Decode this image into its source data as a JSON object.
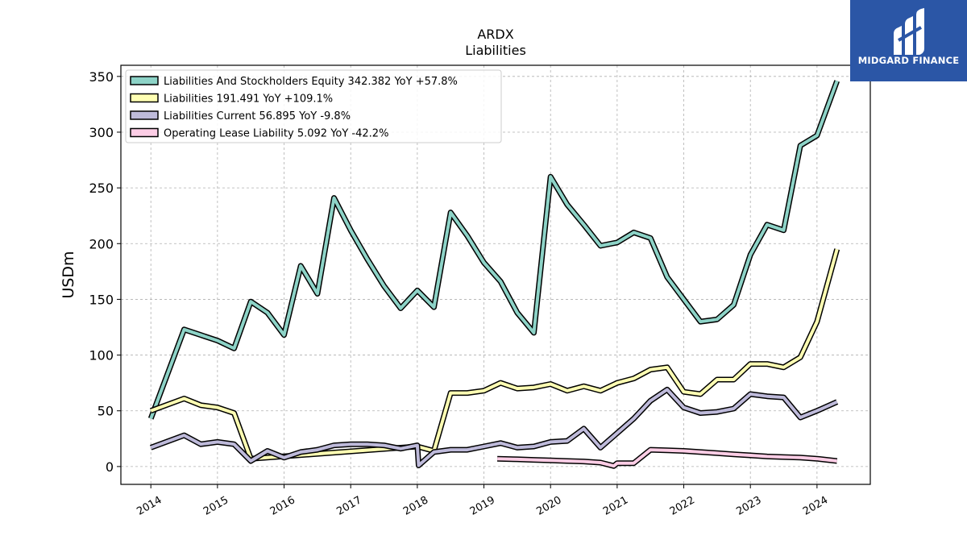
{
  "chart_data": {
    "type": "line",
    "title": "ARDX",
    "subtitle": "Liabilities",
    "ylabel": "USDm",
    "xlabel": "",
    "xlim": [
      2013.55,
      2024.8
    ],
    "ylim": [
      -16,
      360
    ],
    "yticks": [
      0,
      50,
      100,
      150,
      200,
      250,
      300,
      350
    ],
    "xticks": [
      2014,
      2015,
      2016,
      2017,
      2018,
      2019,
      2020,
      2021,
      2022,
      2023,
      2024
    ],
    "grid": true,
    "legend_position": "top-left",
    "series": [
      {
        "name": "Liabilities And Stockholders Equity",
        "legend_label": "Liabilities And Stockholders Equity  342.382 YoY +57.8%",
        "color": "#8dd3c7",
        "points": [
          [
            2014.0,
            43
          ],
          [
            2014.5,
            123
          ],
          [
            2014.75,
            118
          ],
          [
            2015.0,
            113
          ],
          [
            2015.25,
            106
          ],
          [
            2015.5,
            148
          ],
          [
            2015.75,
            138
          ],
          [
            2016.0,
            118
          ],
          [
            2016.25,
            180
          ],
          [
            2016.5,
            155
          ],
          [
            2016.75,
            241
          ],
          [
            2017.0,
            212
          ],
          [
            2017.25,
            186
          ],
          [
            2017.5,
            162
          ],
          [
            2017.75,
            142
          ],
          [
            2018.0,
            158
          ],
          [
            2018.25,
            143
          ],
          [
            2018.5,
            228
          ],
          [
            2018.75,
            207
          ],
          [
            2019.0,
            183
          ],
          [
            2019.25,
            166
          ],
          [
            2019.5,
            138
          ],
          [
            2019.75,
            120
          ],
          [
            2020.0,
            260
          ],
          [
            2020.25,
            235
          ],
          [
            2020.5,
            217
          ],
          [
            2020.75,
            198
          ],
          [
            2021.0,
            201
          ],
          [
            2021.25,
            210
          ],
          [
            2021.5,
            205
          ],
          [
            2021.75,
            170
          ],
          [
            2022.0,
            150
          ],
          [
            2022.25,
            130
          ],
          [
            2022.5,
            132
          ],
          [
            2022.75,
            145
          ],
          [
            2023.0,
            190
          ],
          [
            2023.25,
            217
          ],
          [
            2023.5,
            212
          ],
          [
            2023.75,
            288
          ],
          [
            2024.0,
            297
          ],
          [
            2024.3,
            346
          ]
        ]
      },
      {
        "name": "Liabilities",
        "legend_label": "Liabilities  191.491 YoY +109.1%",
        "color": "#ffffb3",
        "points": [
          [
            2014.0,
            50
          ],
          [
            2014.5,
            61
          ],
          [
            2014.75,
            55
          ],
          [
            2015.0,
            53
          ],
          [
            2015.25,
            48
          ],
          [
            2015.5,
            7
          ],
          [
            2018.0,
            18
          ],
          [
            2018.25,
            14
          ],
          [
            2018.5,
            66
          ],
          [
            2018.75,
            66
          ],
          [
            2019.0,
            68
          ],
          [
            2019.25,
            75
          ],
          [
            2019.5,
            70
          ],
          [
            2019.75,
            71
          ],
          [
            2020.0,
            74
          ],
          [
            2020.25,
            68
          ],
          [
            2020.5,
            72
          ],
          [
            2020.75,
            68
          ],
          [
            2021.0,
            75
          ],
          [
            2021.25,
            79
          ],
          [
            2021.5,
            87
          ],
          [
            2021.75,
            89
          ],
          [
            2022.0,
            67
          ],
          [
            2022.25,
            65
          ],
          [
            2022.5,
            78
          ],
          [
            2022.75,
            78
          ],
          [
            2023.0,
            92
          ],
          [
            2023.25,
            92
          ],
          [
            2023.5,
            89
          ],
          [
            2023.75,
            98
          ],
          [
            2024.0,
            130
          ],
          [
            2024.3,
            195
          ]
        ]
      },
      {
        "name": "Liabilities Current",
        "legend_label": "Liabilities Current  56.895 YoY -9.8%",
        "color": "#bebada",
        "points": [
          [
            2014.0,
            17
          ],
          [
            2014.5,
            28
          ],
          [
            2014.75,
            20
          ],
          [
            2015.0,
            22
          ],
          [
            2015.25,
            20
          ],
          [
            2015.5,
            5
          ],
          [
            2015.75,
            14
          ],
          [
            2016.0,
            8
          ],
          [
            2016.25,
            13
          ],
          [
            2016.5,
            15
          ],
          [
            2016.75,
            19
          ],
          [
            2017.0,
            20
          ],
          [
            2017.25,
            20
          ],
          [
            2017.5,
            19
          ],
          [
            2017.75,
            16
          ],
          [
            2018.0,
            19
          ],
          [
            2018.02,
            1
          ],
          [
            2018.25,
            13
          ],
          [
            2018.5,
            15
          ],
          [
            2018.75,
            15
          ],
          [
            2019.0,
            18
          ],
          [
            2019.25,
            21
          ],
          [
            2019.5,
            17
          ],
          [
            2019.75,
            18
          ],
          [
            2020.0,
            22
          ],
          [
            2020.25,
            23
          ],
          [
            2020.5,
            34
          ],
          [
            2020.75,
            17
          ],
          [
            2021.0,
            30
          ],
          [
            2021.25,
            43
          ],
          [
            2021.5,
            59
          ],
          [
            2021.75,
            69
          ],
          [
            2022.0,
            53
          ],
          [
            2022.25,
            48
          ],
          [
            2022.5,
            49
          ],
          [
            2022.75,
            52
          ],
          [
            2023.0,
            65
          ],
          [
            2023.25,
            63
          ],
          [
            2023.5,
            62
          ],
          [
            2023.75,
            44
          ],
          [
            2024.0,
            50
          ],
          [
            2024.3,
            58
          ]
        ]
      },
      {
        "name": "Operating Lease Liability",
        "legend_label": "Operating Lease Liability  5.092 YoY -42.2%",
        "color": "#fccde5",
        "points": [
          [
            2019.2,
            7
          ],
          [
            2019.5,
            6.5
          ],
          [
            2019.75,
            6
          ],
          [
            2020.0,
            5.5
          ],
          [
            2020.25,
            5
          ],
          [
            2020.5,
            4.5
          ],
          [
            2020.75,
            3.5
          ],
          [
            2020.95,
            0.5
          ],
          [
            2021.0,
            3
          ],
          [
            2021.25,
            3
          ],
          [
            2021.5,
            15
          ],
          [
            2021.75,
            14.5
          ],
          [
            2022.0,
            14
          ],
          [
            2022.25,
            13
          ],
          [
            2022.5,
            12
          ],
          [
            2022.75,
            11
          ],
          [
            2023.0,
            10
          ],
          [
            2023.25,
            9
          ],
          [
            2023.5,
            8.5
          ],
          [
            2023.75,
            8
          ],
          [
            2024.0,
            7
          ],
          [
            2024.3,
            5
          ]
        ]
      }
    ]
  },
  "logo": {
    "name": "MIDGARD FINANCE",
    "background": "#2b56a6"
  }
}
